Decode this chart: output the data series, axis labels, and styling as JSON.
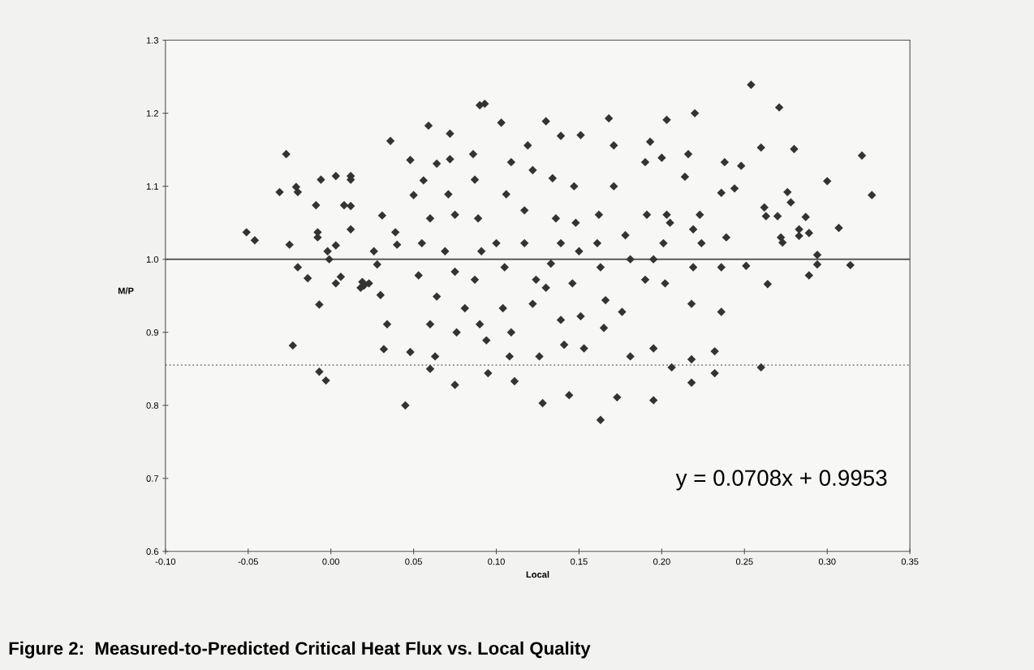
{
  "chart_data": {
    "type": "scatter",
    "title": "Figure 2:  Measured-to-Predicted Critical Heat Flux vs. Local Quality",
    "xlabel": "Local",
    "ylabel": "M/P",
    "x": [
      -0.051,
      -0.046,
      -0.027,
      -0.031,
      -0.021,
      -0.02,
      -0.025,
      -0.02,
      -0.014,
      -0.023,
      -0.009,
      -0.008,
      -0.008,
      -0.007,
      -0.007,
      -0.003,
      -0.006,
      0.003,
      0.008,
      0.012,
      0.012,
      0.012,
      0.012,
      -0.002,
      0.003,
      0.003,
      0.006,
      -0.001,
      0.018,
      0.02,
      0.019,
      0.023,
      0.026,
      0.031,
      0.028,
      0.03,
      0.034,
      0.032,
      0.048,
      0.045,
      0.036,
      0.039,
      0.04,
      0.048,
      0.05,
      0.056,
      0.059,
      0.064,
      0.06,
      0.055,
      0.053,
      0.064,
      0.06,
      0.063,
      0.06,
      0.072,
      0.072,
      0.071,
      0.075,
      0.069,
      0.075,
      0.081,
      0.076,
      0.075,
      0.09,
      0.093,
      0.086,
      0.087,
      0.089,
      0.091,
      0.087,
      0.09,
      0.094,
      0.095,
      0.103,
      0.109,
      0.106,
      0.1,
      0.105,
      0.104,
      0.109,
      0.108,
      0.111,
      0.119,
      0.122,
      0.117,
      0.117,
      0.124,
      0.122,
      0.126,
      0.128,
      0.13,
      0.134,
      0.136,
      0.139,
      0.133,
      0.13,
      0.139,
      0.141,
      0.139,
      0.151,
      0.144,
      0.147,
      0.148,
      0.15,
      0.146,
      0.151,
      0.153,
      0.163,
      0.162,
      0.161,
      0.163,
      0.166,
      0.165,
      0.168,
      0.171,
      0.171,
      0.173,
      0.178,
      0.181,
      0.176,
      0.181,
      0.193,
      0.19,
      0.191,
      0.195,
      0.19,
      0.195,
      0.195,
      0.203,
      0.2,
      0.203,
      0.205,
      0.201,
      0.202,
      0.206,
      0.22,
      0.216,
      0.214,
      0.219,
      0.219,
      0.218,
      0.218,
      0.218,
      0.223,
      0.224,
      0.232,
      0.232,
      0.236,
      0.238,
      0.236,
      0.239,
      0.236,
      0.244,
      0.254,
      0.248,
      0.251,
      0.26,
      0.26,
      0.262,
      0.263,
      0.264,
      0.27,
      0.271,
      0.272,
      0.273,
      0.276,
      0.278,
      0.28,
      0.283,
      0.283,
      0.287,
      0.289,
      0.289,
      0.294,
      0.294,
      0.3,
      0.307,
      0.314,
      0.321,
      0.327
    ],
    "values": [
      1.037,
      1.026,
      1.144,
      1.092,
      1.099,
      1.092,
      1.02,
      0.989,
      0.974,
      0.882,
      1.074,
      1.037,
      1.03,
      0.938,
      0.846,
      0.834,
      1.109,
      1.114,
      1.074,
      1.073,
      1.114,
      1.109,
      1.041,
      1.011,
      1.019,
      0.967,
      0.976,
      1.0,
      0.961,
      0.964,
      0.969,
      0.967,
      1.011,
      1.06,
      0.993,
      0.951,
      0.911,
      0.877,
      0.873,
      0.8,
      1.162,
      1.037,
      1.02,
      1.136,
      1.088,
      1.108,
      1.183,
      1.131,
      1.056,
      1.022,
      0.978,
      0.949,
      0.911,
      0.867,
      0.85,
      1.172,
      1.137,
      1.089,
      1.061,
      1.011,
      0.983,
      0.933,
      0.9,
      0.828,
      1.211,
      1.213,
      1.144,
      1.109,
      1.056,
      1.011,
      0.972,
      0.911,
      0.889,
      0.844,
      1.187,
      1.133,
      1.089,
      1.022,
      0.989,
      0.933,
      0.9,
      0.867,
      0.833,
      1.156,
      1.122,
      1.067,
      1.022,
      0.972,
      0.939,
      0.867,
      0.803,
      1.189,
      1.111,
      1.056,
      1.022,
      0.994,
      0.961,
      0.917,
      0.883,
      1.169,
      1.17,
      0.814,
      1.1,
      1.05,
      1.011,
      0.967,
      0.922,
      0.878,
      0.78,
      1.061,
      1.022,
      0.989,
      0.944,
      0.906,
      1.193,
      1.156,
      1.1,
      0.811,
      1.033,
      1.0,
      0.928,
      0.867,
      1.161,
      1.133,
      1.061,
      1.0,
      0.972,
      0.878,
      0.807,
      1.191,
      1.139,
      1.061,
      1.05,
      1.022,
      0.967,
      0.852,
      1.2,
      1.144,
      1.113,
      1.041,
      0.989,
      0.939,
      0.863,
      0.831,
      1.061,
      1.022,
      0.874,
      0.844,
      0.928,
      1.133,
      1.091,
      1.03,
      0.989,
      1.097,
      1.239,
      1.128,
      0.991,
      1.153,
      0.852,
      1.071,
      1.059,
      0.966,
      1.059,
      1.208,
      1.03,
      1.023,
      1.092,
      1.078,
      1.151,
      1.032,
      1.041,
      1.058,
      1.036,
      0.978,
      1.006,
      0.993,
      1.107,
      1.043,
      0.992,
      1.142,
      1.088
    ],
    "color": "#333333",
    "marker": "diamond",
    "xlim": [
      -0.1,
      0.35
    ],
    "xticks": [
      {
        "value": -0.1,
        "label": "-0.10"
      },
      {
        "value": -0.05,
        "label": "-0.05"
      },
      {
        "value": 0.0,
        "label": "0.00"
      },
      {
        "value": 0.05,
        "label": "0.05"
      },
      {
        "value": 0.1,
        "label": "0.10"
      },
      {
        "value": 0.15,
        "label": "0.15"
      },
      {
        "value": 0.2,
        "label": "0.20"
      },
      {
        "value": 0.25,
        "label": "0.25"
      },
      {
        "value": 0.3,
        "label": "0.30"
      },
      {
        "value": 0.35,
        "label": "0.35"
      }
    ],
    "ylim": [
      0.6,
      1.3
    ],
    "yticks": [
      {
        "value": 0.6,
        "label": "0.6"
      },
      {
        "value": 0.7,
        "label": "0.7"
      },
      {
        "value": 0.8,
        "label": "0.8"
      },
      {
        "value": 0.9,
        "label": "0.9"
      },
      {
        "value": 1.0,
        "label": "1.0"
      },
      {
        "value": 1.1,
        "label": "1.1"
      },
      {
        "value": 1.2,
        "label": "1.2"
      },
      {
        "value": 1.3,
        "label": "1.3"
      }
    ],
    "ref_lines": [
      {
        "axis": "y",
        "value": 1.0,
        "color": "#444444",
        "line_style": "solid"
      },
      {
        "axis": "y",
        "value": 0.855,
        "color": "#888888",
        "line_style": "dotted"
      }
    ],
    "annotations": [
      "y = 0.0708x + 0.9953"
    ]
  }
}
